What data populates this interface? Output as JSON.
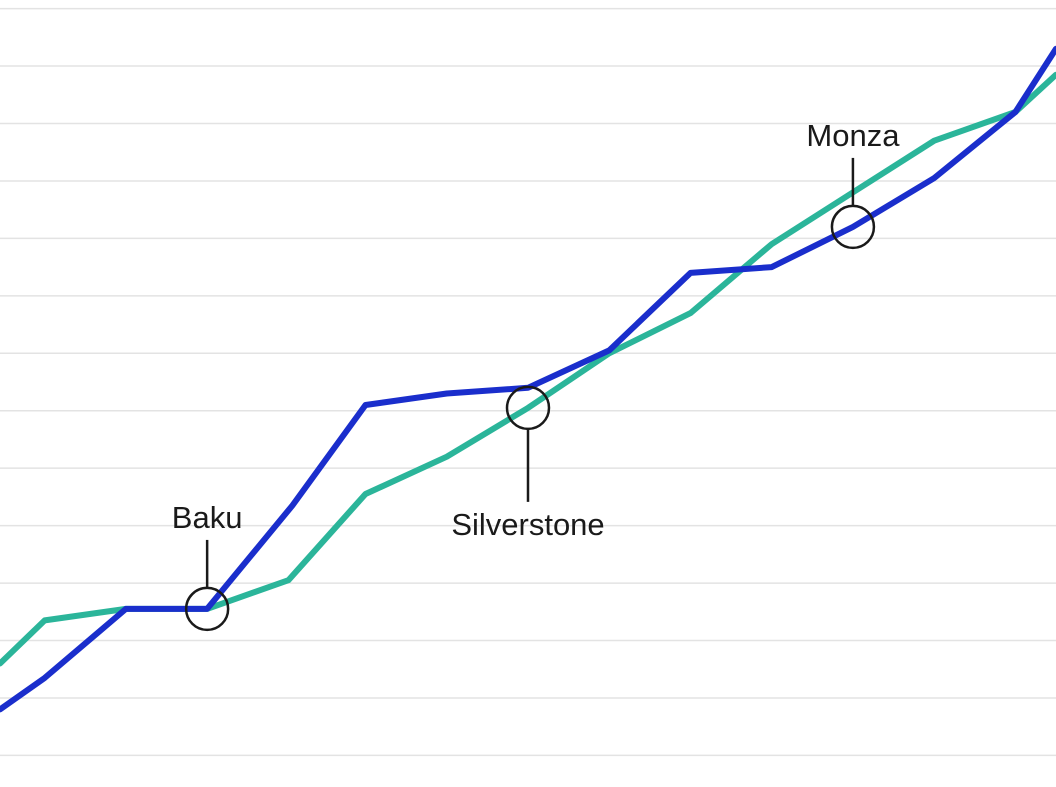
{
  "chart_data": {
    "type": "line",
    "title": "",
    "xlabel": "",
    "ylabel": "",
    "grid": true,
    "legend": "none",
    "xlim": [
      0,
      13
    ],
    "ylim": [
      0,
      13.7
    ],
    "gridlines_y": [
      0.55,
      1.55,
      2.55,
      3.55,
      4.55,
      5.55,
      6.55,
      7.55,
      8.55,
      9.55,
      10.55,
      11.55,
      12.55,
      13.55
    ],
    "series": [
      {
        "color": "#1a2ecc",
        "x": [
          0,
          0.55,
          1.55,
          2.55,
          3.6,
          4.5,
          5.5,
          6.5,
          7.5,
          8.5,
          9.5,
          10.5,
          11.5,
          12.5,
          13
        ],
        "y": [
          1.35,
          1.9,
          3.1,
          3.1,
          4.9,
          6.65,
          6.85,
          6.95,
          7.6,
          8.95,
          9.05,
          9.75,
          10.6,
          11.75,
          12.85
        ]
      },
      {
        "color": "#2bb59a",
        "x": [
          0,
          0.55,
          1.55,
          2.55,
          3.55,
          4.5,
          5.5,
          6.5,
          7.5,
          8.5,
          9.5,
          10.5,
          11.5,
          12.5,
          13
        ],
        "y": [
          2.15,
          2.9,
          3.1,
          3.1,
          3.6,
          5.1,
          5.75,
          6.6,
          7.55,
          8.25,
          9.45,
          10.35,
          11.25,
          11.75,
          12.4
        ]
      }
    ],
    "annotations": [
      {
        "label": "Baku",
        "x": 2.55,
        "y": 3.1,
        "label_side": "above"
      },
      {
        "label": "Silverstone",
        "x": 6.5,
        "y": 6.6,
        "label_side": "below"
      },
      {
        "label": "Monza",
        "x": 10.5,
        "y": 9.75,
        "label_side": "above"
      }
    ]
  }
}
